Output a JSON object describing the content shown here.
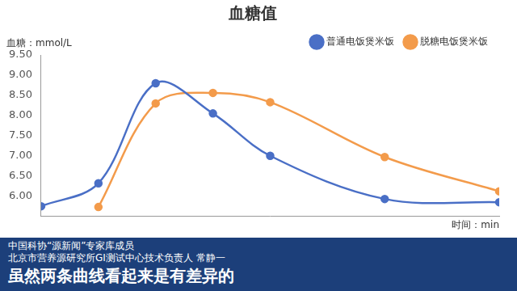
{
  "chart_data": {
    "type": "line",
    "title": "血糖值",
    "y_label": "血糖：mmol/L",
    "x_label": "时间：min",
    "x": [
      0,
      15,
      30,
      45,
      60,
      90,
      120
    ],
    "series": [
      {
        "name": "普通电饭煲米饭",
        "color": "#4a6fc6",
        "marker": "circle",
        "line_style": "solid",
        "values": [
          5.75,
          6.32,
          8.8,
          8.05,
          7.0,
          5.93,
          5.85
        ]
      },
      {
        "name": "脱糖电饭煲米饭",
        "color": "#f39b4b",
        "marker": "circle",
        "line_style": "solid",
        "values": [
          null,
          5.73,
          8.3,
          8.56,
          8.33,
          6.97,
          6.12
        ]
      }
    ],
    "xlim": [
      0,
      120
    ],
    "ylim": [
      5.5,
      9.5
    ],
    "yticks": [
      {
        "value": 6,
        "label": "6.00"
      },
      {
        "value": 6.5,
        "label": "6.50"
      },
      {
        "value": 7,
        "label": "7.00"
      },
      {
        "value": 7.5,
        "label": "7.50"
      },
      {
        "value": 8,
        "label": "8.00"
      },
      {
        "value": 8.5,
        "label": "8.50"
      },
      {
        "value": 9,
        "label": "9.00"
      },
      {
        "value": 9.5,
        "label": "9.50"
      }
    ],
    "grid": false,
    "legend": "top-right",
    "tick_labels": "y",
    "annotations": [
      "中国科协“源新闻”专家库成员",
      "北京市营养源研究所GI测试中心技术负责人 常静一",
      "虽然两条曲线看起来是有差异的"
    ]
  }
}
